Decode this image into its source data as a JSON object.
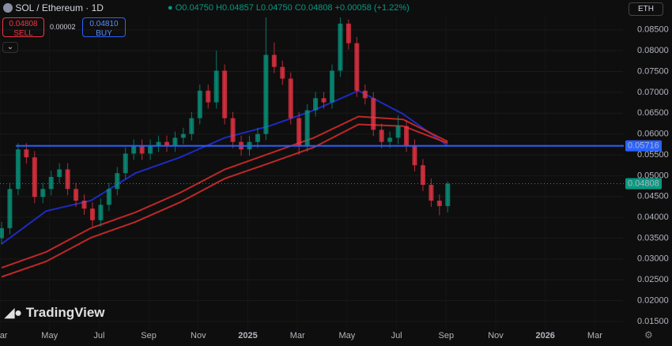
{
  "header": {
    "symbol": "SOL / Ethereum · 1D",
    "ohlc": [
      "O0.04750",
      "H0.04857",
      "L0.04750",
      "C0.04808"
    ],
    "change": "+0.00058 (+1.22%)",
    "sell_price": "0.04808",
    "sell": "SELL",
    "spread": "0.00002",
    "buy_price": "0.04810",
    "buy": "BUY",
    "currency": "ETH",
    "brand": "TradingView"
  },
  "chart_data": {
    "type": "candlestick",
    "up_color": "#089981",
    "down_color": "#f23645",
    "open": [
      0.035,
      0.0374,
      0.0468,
      0.0563,
      0.0544,
      0.0449,
      0.0468,
      0.0497,
      0.0515,
      0.0468,
      0.044,
      0.0421,
      0.0393,
      0.043,
      0.0468,
      0.0506,
      0.0553,
      0.0572,
      0.0553,
      0.0572,
      0.0581,
      0.0572,
      0.0591,
      0.06,
      0.0638,
      0.0704,
      0.0676,
      0.0752,
      0.0638,
      0.0581,
      0.0563,
      0.0581,
      0.06,
      0.079,
      0.0761,
      0.0733,
      0.0638,
      0.0572,
      0.0657,
      0.0686,
      0.0676,
      0.0752,
      0.0865,
      0.0818,
      0.0704,
      0.0686,
      0.061,
      0.0581,
      0.0591,
      0.0619,
      0.0572,
      0.0525,
      0.0478,
      0.044,
      0.0427
    ],
    "high": [
      0.0389,
      0.0483,
      0.0578,
      0.0578,
      0.0559,
      0.0483,
      0.0512,
      0.053,
      0.053,
      0.0483,
      0.0455,
      0.0436,
      0.0445,
      0.0483,
      0.0521,
      0.0568,
      0.0587,
      0.0587,
      0.0587,
      0.0596,
      0.0596,
      0.0606,
      0.0615,
      0.0653,
      0.0719,
      0.0719,
      0.08,
      0.0767,
      0.0653,
      0.0596,
      0.0596,
      0.0615,
      0.088,
      0.082,
      0.0776,
      0.0748,
      0.0653,
      0.0672,
      0.0701,
      0.0701,
      0.0767,
      0.088,
      0.0875,
      0.0833,
      0.0719,
      0.0701,
      0.0625,
      0.0606,
      0.0645,
      0.0634,
      0.0587,
      0.054,
      0.0493,
      0.0455,
      0.0486
    ],
    "low": [
      0.0335,
      0.0359,
      0.0453,
      0.0529,
      0.0434,
      0.0434,
      0.0453,
      0.0482,
      0.0453,
      0.0425,
      0.0406,
      0.0378,
      0.0378,
      0.0415,
      0.0453,
      0.0491,
      0.0538,
      0.0538,
      0.0538,
      0.0557,
      0.0557,
      0.0557,
      0.0576,
      0.0585,
      0.0623,
      0.0661,
      0.0661,
      0.0623,
      0.0566,
      0.0548,
      0.0548,
      0.0566,
      0.0585,
      0.0746,
      0.0718,
      0.0623,
      0.055,
      0.0557,
      0.0642,
      0.0661,
      0.0661,
      0.0737,
      0.0803,
      0.0689,
      0.0671,
      0.0595,
      0.0566,
      0.0566,
      0.0576,
      0.0557,
      0.051,
      0.0463,
      0.0425,
      0.0405,
      0.0412
    ],
    "close": [
      0.0374,
      0.0468,
      0.0563,
      0.0544,
      0.0449,
      0.0468,
      0.0497,
      0.0515,
      0.0468,
      0.044,
      0.0421,
      0.0393,
      0.043,
      0.0468,
      0.0506,
      0.0553,
      0.0572,
      0.0553,
      0.0572,
      0.0581,
      0.0572,
      0.0591,
      0.06,
      0.0638,
      0.0704,
      0.0676,
      0.0752,
      0.0638,
      0.0581,
      0.0563,
      0.0581,
      0.06,
      0.079,
      0.0761,
      0.0733,
      0.0638,
      0.0572,
      0.0657,
      0.0686,
      0.0676,
      0.0752,
      0.0865,
      0.0818,
      0.0704,
      0.0686,
      0.061,
      0.0581,
      0.0591,
      0.0619,
      0.0572,
      0.0525,
      0.0478,
      0.044,
      0.0427,
      0.04808
    ],
    "lines": [
      {
        "color": "#1e2fd6",
        "values": [
          0.0336,
          0.0415,
          0.044,
          0.0506,
          0.0544,
          0.0591,
          0.0619,
          0.0657,
          0.0704,
          0.0648,
          0.0572
        ]
      },
      {
        "color": "#d42a2a",
        "values": [
          0.0279,
          0.0317,
          0.0374,
          0.0412,
          0.0459,
          0.0515,
          0.0553,
          0.0591,
          0.0642,
          0.0635,
          0.0582
        ]
      },
      {
        "color": "#d42a2a",
        "values": [
          0.0257,
          0.0294,
          0.0351,
          0.0389,
          0.0436,
          0.0493,
          0.053,
          0.0568,
          0.0623,
          0.0619,
          0.0578
        ]
      }
    ],
    "hline": {
      "value": 0.05716,
      "label": "0.05716",
      "color": "#2962ff"
    },
    "last": {
      "value": 0.04808,
      "label": "0.04808",
      "color": "#089981"
    },
    "ylim": [
      0.0129,
      0.088
    ],
    "yticks": [
      {
        "value": 0.085,
        "label": "0.08500"
      },
      {
        "value": 0.08,
        "label": "0.08000"
      },
      {
        "value": 0.075,
        "label": "0.07500"
      },
      {
        "value": 0.07,
        "label": "0.07000"
      },
      {
        "value": 0.065,
        "label": "0.06500"
      },
      {
        "value": 0.06,
        "label": "0.06000"
      },
      {
        "value": 0.055,
        "label": "0.05500"
      },
      {
        "value": 0.05,
        "label": "0.05000"
      },
      {
        "value": 0.045,
        "label": "0.04500"
      },
      {
        "value": 0.04,
        "label": "0.04000"
      },
      {
        "value": 0.035,
        "label": "0.03500"
      },
      {
        "value": 0.03,
        "label": "0.03000"
      },
      {
        "value": 0.025,
        "label": "0.02500"
      },
      {
        "value": 0.02,
        "label": "0.02000"
      },
      {
        "value": 0.015,
        "label": "0.01500"
      }
    ],
    "xticks": [
      "Mar",
      "May",
      "Jul",
      "Sep",
      "Nov",
      "2025",
      "Mar",
      "May",
      "Jul",
      "Sep",
      "Nov",
      "2026",
      "Mar"
    ],
    "grid": true
  }
}
